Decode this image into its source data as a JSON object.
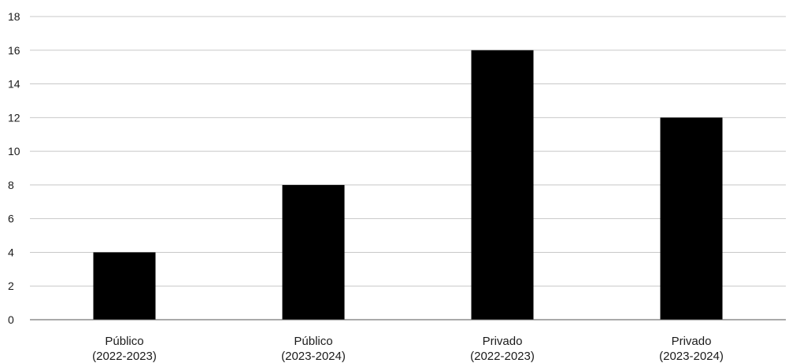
{
  "chart_data": {
    "type": "bar",
    "categories": [
      [
        "Público",
        "(2022-2023)"
      ],
      [
        "Público",
        "(2023-2024)"
      ],
      [
        "Privado",
        "(2022-2023)"
      ],
      [
        "Privado",
        "(2023-2024)"
      ]
    ],
    "values": [
      4,
      8,
      16,
      12
    ],
    "ylim": [
      0,
      18
    ],
    "yticks": [
      "0",
      "2",
      "4",
      "6",
      "8",
      "10",
      "12",
      "14",
      "16",
      "18"
    ],
    "grid": true,
    "bar_color": "#000000",
    "grid_color": "#c8c8c8",
    "axis_color": "#555555"
  }
}
